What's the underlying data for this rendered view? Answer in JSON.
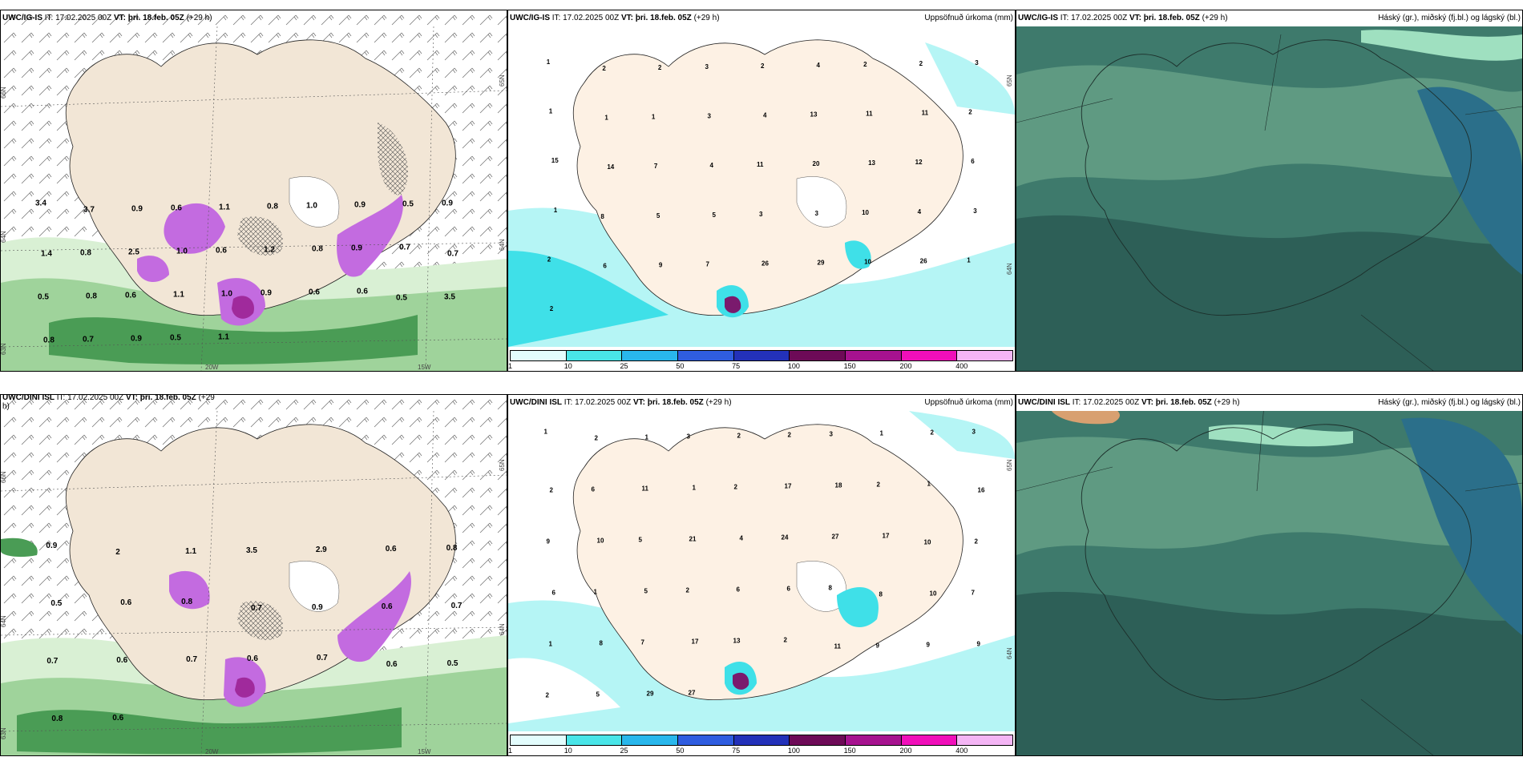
{
  "panels": {
    "p1": {
      "model": "UWC/IG-IS",
      "it_label": "IT:",
      "it": "17.02.2025 00Z",
      "vt_label": "VT:",
      "vt": "þri. 18.feb. 05Z",
      "lead": "(+29 h)",
      "right_title": "",
      "axes": {
        "lat_top": "66N",
        "lat_mid": "64N",
        "lat_bottom": "63N",
        "lat_right": "65N",
        "lat_right2": "64N",
        "lon_20w": "20W",
        "lon_15w": "15W"
      },
      "values": [
        "3.4",
        "3.7",
        "0.9",
        "0.6",
        "1.1",
        "0.8",
        "1.0",
        "0.9",
        "0.5",
        "0.9",
        "1.4",
        "0.8",
        "2.5",
        "1.0",
        "0.6",
        "1.2",
        "0.8",
        "0.9",
        "0.7",
        "0.7",
        "0.5",
        "0.8",
        "0.6",
        "1.1",
        "1.0",
        "0.9",
        "0.6",
        "0.6",
        "0.5",
        "3.5",
        "0.8",
        "0.7",
        "0.9",
        "0.5",
        "1.1"
      ]
    },
    "p2": {
      "model": "UWC/IG-IS",
      "it_label": "IT:",
      "it": "17.02.2025 00Z",
      "vt_label": "VT:",
      "vt": "þri. 18.feb. 05Z",
      "lead": "(+29 h)",
      "right_title": "Uppsöfnuð úrkoma (mm)",
      "axes": {
        "lat_right": "65N",
        "lat_right2": "64N"
      },
      "values": [
        "1",
        "2",
        "2",
        "3",
        "2",
        "4",
        "2",
        "2",
        "3",
        "1",
        "1",
        "1",
        "3",
        "4",
        "13",
        "11",
        "11",
        "2",
        "15",
        "14",
        "7",
        "4",
        "11",
        "20",
        "13",
        "12",
        "6",
        "1",
        "8",
        "5",
        "5",
        "3",
        "3",
        "10",
        "4",
        "3",
        "2",
        "6",
        "9",
        "7",
        "26",
        "29",
        "10",
        "26",
        "1",
        "2"
      ],
      "legend": [
        "1",
        "10",
        "25",
        "50",
        "75",
        "100",
        "150",
        "200",
        "400"
      ]
    },
    "p3": {
      "model": "UWC/IG-IS",
      "it_label": "IT:",
      "it": "17.02.2025 00Z",
      "vt_label": "VT:",
      "vt": "þri. 18.feb. 05Z",
      "lead": "(+29 h)",
      "right_title": "Háský (gr.), miðský (fj.bl.) og lágský (bl.)"
    },
    "p4": {
      "model": "UWC/DINI ISL",
      "it_label": "IT:",
      "it": "17.02.2025 00Z",
      "vt_label": "VT:",
      "vt": "þri. 18.feb. 05Z",
      "lead": "(+29",
      "lead2": "h)",
      "right_title": "",
      "axes": {
        "lat_top": "66N",
        "lat_mid": "64N",
        "lat_bottom": "63N",
        "lat_right": "65N",
        "lat_right2": "64N",
        "lon_20w": "20W",
        "lon_15w": "15W"
      },
      "values": [
        "0.9",
        "2",
        "1.1",
        "3.5",
        "2.9",
        "0.6",
        "0.8",
        "0.5",
        "0.6",
        "0.8",
        "0.7",
        "0.9",
        "0.6",
        "0.7",
        "0.7",
        "0.6",
        "0.7",
        "0.6",
        "0.7",
        "0.6",
        "0.5",
        "0.8",
        "0.6"
      ]
    },
    "p5": {
      "model": "UWC/DINI ISL",
      "it_label": "IT:",
      "it": "17.02.2025 00Z",
      "vt_label": "VT:",
      "vt": "þri. 18.feb. 05Z",
      "lead": "(+29 h)",
      "right_title": "Uppsöfnuð úrkoma (mm)",
      "axes": {
        "lat_right": "65N",
        "lat_right2": "64N"
      },
      "values": [
        "1",
        "2",
        "1",
        "3",
        "2",
        "2",
        "3",
        "1",
        "2",
        "3",
        "2",
        "6",
        "11",
        "1",
        "2",
        "17",
        "18",
        "2",
        "1",
        "16",
        "9",
        "10",
        "5",
        "21",
        "4",
        "24",
        "27",
        "17",
        "10",
        "2",
        "6",
        "1",
        "5",
        "2",
        "6",
        "6",
        "8",
        "8",
        "10",
        "7",
        "1",
        "8",
        "7",
        "17",
        "13",
        "2",
        "11",
        "9",
        "9",
        "9",
        "2",
        "5",
        "29",
        "27"
      ],
      "legend": [
        "1",
        "10",
        "25",
        "50",
        "75",
        "100",
        "150",
        "200",
        "400"
      ]
    },
    "p6": {
      "model": "UWC/DINI ISL",
      "it_label": "IT:",
      "it": "17.02.2025 00Z",
      "vt_label": "VT:",
      "vt": "þri. 18.feb. 05Z",
      "lead": "(+29 h)",
      "right_title": "Háský (gr.), miðský (fj.bl.) og lágský (bl.)"
    }
  },
  "colors": {
    "land": "#f2e6d6",
    "land_light": "#fdf1e4",
    "ocean_precip": "#b5f5f5",
    "ocean_precip2": "#3fe0e8",
    "green_light": "#d9f0d4",
    "green_mid": "#9fd39b",
    "green_dark": "#4a9c55",
    "purple": "#c36be0",
    "magenta": "#a02a9c",
    "cloud_base": "#3e7a6c",
    "cloud_dark": "#2d5f57",
    "cloud_light": "#5f9a82",
    "cloud_blue": "#2b6f8a"
  },
  "legend_colors": [
    "#e3fdfd",
    "#49e5e8",
    "#29b7ec",
    "#2f5de0",
    "#2331b9",
    "#6d0a57",
    "#a6128f",
    "#f00fba",
    "#f4b5f5"
  ]
}
